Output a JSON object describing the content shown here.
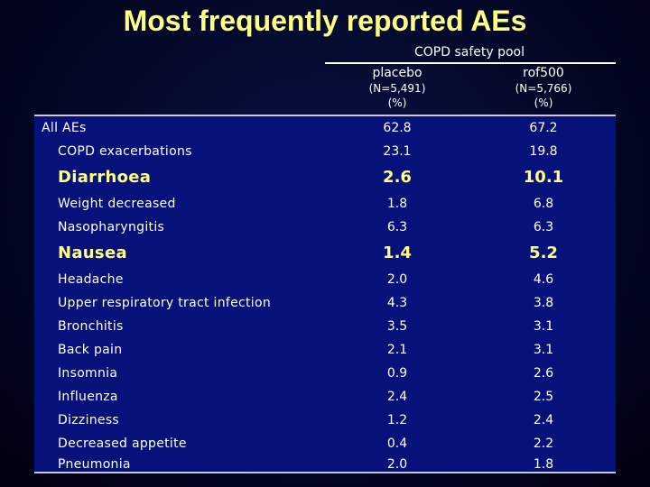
{
  "title": "Most frequently reported AEs",
  "group_header": "COPD safety pool",
  "columns": [
    {
      "name": "placebo",
      "n": "(N=5,491)",
      "unit": "(%)"
    },
    {
      "name": "rof500",
      "n": "(N=5,766)",
      "unit": "(%)"
    }
  ],
  "rows": [
    {
      "label": "All AEs",
      "placebo": "62.8",
      "rof500": "67.2"
    },
    {
      "label": "COPD exacerbations",
      "placebo": "23.1",
      "rof500": "19.8"
    },
    {
      "label": "Diarrhoea",
      "placebo": "2.6",
      "rof500": "10.1"
    },
    {
      "label": "Weight decreased",
      "placebo": "1.8",
      "rof500": "6.8"
    },
    {
      "label": "Nasopharyngitis",
      "placebo": "6.3",
      "rof500": "6.3"
    },
    {
      "label": "Nausea",
      "placebo": "1.4",
      "rof500": "5.2"
    },
    {
      "label": "Headache",
      "placebo": "2.0",
      "rof500": "4.6"
    },
    {
      "label": "Upper respiratory tract infection",
      "placebo": "4.3",
      "rof500": "3.8"
    },
    {
      "label": "Bronchitis",
      "placebo": "3.5",
      "rof500": "3.1"
    },
    {
      "label": "Back pain",
      "placebo": "2.1",
      "rof500": "3.1"
    },
    {
      "label": "Insomnia",
      "placebo": "0.9",
      "rof500": "2.6"
    },
    {
      "label": "Influenza",
      "placebo": "2.4",
      "rof500": "2.5"
    },
    {
      "label": "Dizziness",
      "placebo": "1.2",
      "rof500": "2.4"
    },
    {
      "label": "Decreased appetite",
      "placebo": "0.4",
      "rof500": "2.2"
    },
    {
      "label": "Pneumonia",
      "placebo": "2.0",
      "rof500": "1.8"
    }
  ],
  "colors": {
    "title": "#ffff80",
    "highlight": "#ffff80",
    "table_background": "#06127a",
    "slide_background": "#040828"
  }
}
